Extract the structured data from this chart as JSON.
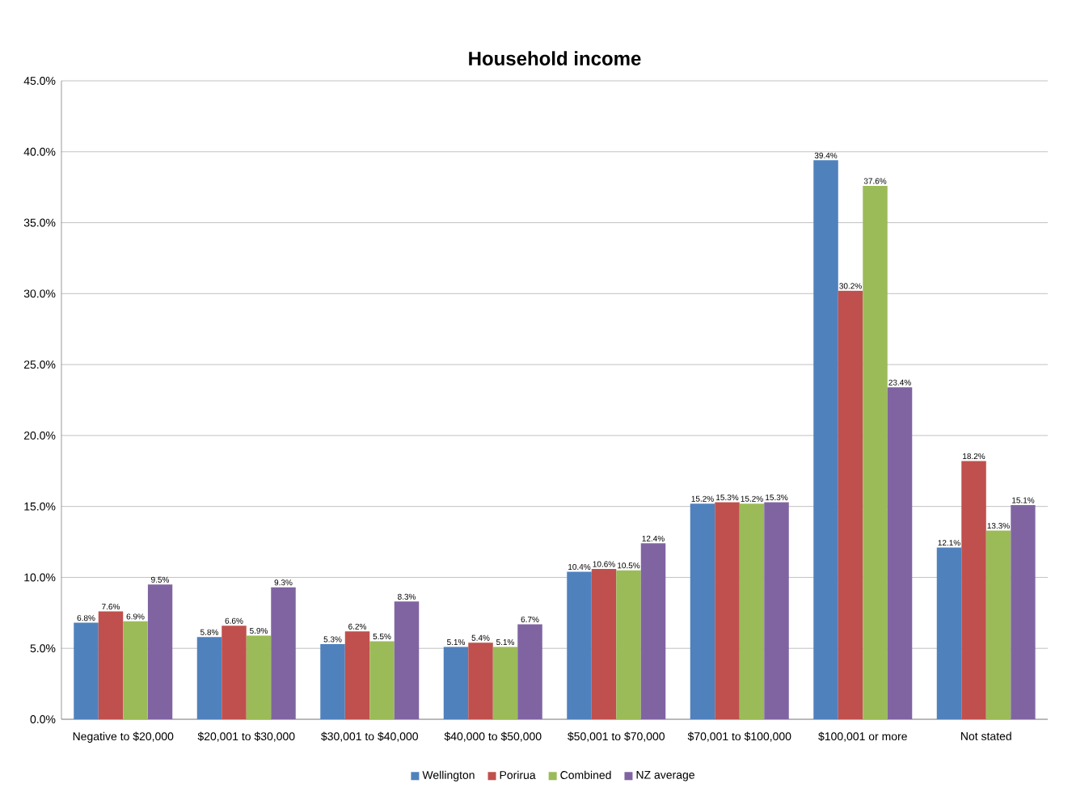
{
  "chart_data": {
    "type": "bar",
    "title": "Household income",
    "categories": [
      "Negative to $20,000",
      "$20,001 to $30,000",
      "$30,001 to $40,000",
      "$40,000 to $50,000",
      "$50,001 to $70,000",
      "$70,001 to $100,000",
      "$100,001 or more",
      "Not stated"
    ],
    "series": [
      {
        "name": "Wellington",
        "color": "#4f81bd",
        "values": [
          6.8,
          5.8,
          5.3,
          5.1,
          10.4,
          15.2,
          39.4,
          12.1
        ],
        "value_labels": [
          "6.8%",
          "5.8%",
          "5.3%",
          "5.1%",
          "10.4%",
          "15.2%",
          "39.4%",
          "12.1%"
        ]
      },
      {
        "name": "Porirua",
        "color": "#c0504d",
        "values": [
          7.6,
          6.6,
          6.2,
          5.4,
          10.6,
          15.3,
          30.2,
          18.2
        ],
        "value_labels": [
          "7.6%",
          "6.6%",
          "6.2%",
          "5.4%",
          "10.6%",
          "15.3%",
          "30.2%",
          "18.2%"
        ]
      },
      {
        "name": "Combined",
        "color": "#9bbb59",
        "values": [
          6.9,
          5.9,
          5.5,
          5.1,
          10.5,
          15.2,
          37.6,
          13.3
        ],
        "value_labels": [
          "6.9%",
          "5.9%",
          "5.5%",
          "5.1%",
          "10.5%",
          "15.2%",
          "37.6%",
          "13.3%"
        ]
      },
      {
        "name": "NZ average",
        "color": "#8064a2",
        "values": [
          9.5,
          9.3,
          8.3,
          6.7,
          12.4,
          15.3,
          23.4,
          15.1
        ],
        "value_labels": [
          "9.5%",
          "9.3%",
          "8.3%",
          "6.7%",
          "12.4%",
          "15.3%",
          "23.4%",
          "15.1%"
        ]
      }
    ],
    "ylim": [
      0,
      45
    ],
    "yticks": [
      {
        "value": 0,
        "label": "0.0%"
      },
      {
        "value": 5,
        "label": "5.0%"
      },
      {
        "value": 10,
        "label": "10.0%"
      },
      {
        "value": 15,
        "label": "15.0%"
      },
      {
        "value": 20,
        "label": "20.0%"
      },
      {
        "value": 25,
        "label": "25.0%"
      },
      {
        "value": 30,
        "label": "30.0%"
      },
      {
        "value": 35,
        "label": "35.0%"
      },
      {
        "value": 40,
        "label": "40.0%"
      },
      {
        "value": 45,
        "label": "45.0%"
      }
    ],
    "grid": "y",
    "legend": "bottom"
  }
}
